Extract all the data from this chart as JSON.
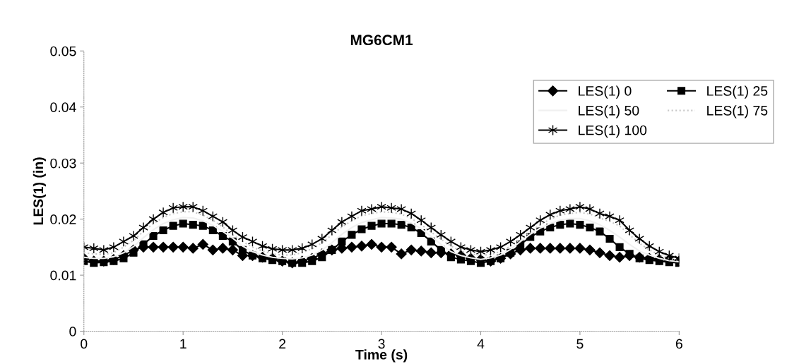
{
  "chart_data": {
    "type": "line",
    "title": "MG6CM1",
    "xlabel": "Time (s)",
    "ylabel": "LES(1) (in)",
    "x": [
      0,
      0.1,
      0.2,
      0.3,
      0.4,
      0.5,
      0.6,
      0.7,
      0.8,
      0.9,
      1,
      1.1,
      1.2,
      1.3,
      1.4,
      1.5,
      1.6,
      1.7,
      1.8,
      1.9,
      2,
      2.1,
      2.2,
      2.3,
      2.4,
      2.5,
      2.6,
      2.7,
      2.8,
      2.9,
      3,
      3.1,
      3.2,
      3.3,
      3.4,
      3.5,
      3.6,
      3.7,
      3.8,
      3.9,
      4,
      4.1,
      4.2,
      4.3,
      4.4,
      4.5,
      4.6,
      4.7,
      4.8,
      4.9,
      5,
      5.1,
      5.2,
      5.3,
      5.4,
      5.5,
      5.6,
      5.7,
      5.8,
      5.9,
      6
    ],
    "series": [
      {
        "name": "LES(1) 0",
        "color": "#000000",
        "marker": "diamond",
        "line_style": "solid",
        "values": [
          0.013,
          0.0125,
          0.0125,
          0.0128,
          0.0135,
          0.0145,
          0.015,
          0.015,
          0.015,
          0.015,
          0.015,
          0.0148,
          0.0155,
          0.0145,
          0.0148,
          0.0145,
          0.0135,
          0.0135,
          0.0132,
          0.013,
          0.0125,
          0.0122,
          0.0125,
          0.013,
          0.0138,
          0.0145,
          0.0148,
          0.015,
          0.0152,
          0.0155,
          0.015,
          0.015,
          0.0138,
          0.0145,
          0.0143,
          0.014,
          0.014,
          0.0138,
          0.0135,
          0.013,
          0.0128,
          0.0125,
          0.013,
          0.0138,
          0.0145,
          0.0148,
          0.0148,
          0.0148,
          0.0148,
          0.0148,
          0.0148,
          0.0145,
          0.014,
          0.0135,
          0.0132,
          0.0135,
          0.0132,
          0.013,
          0.0128,
          0.0127,
          0.0125
        ]
      },
      {
        "name": "LES(1) 25",
        "color": "#000000",
        "marker": "square",
        "line_style": "solid",
        "values": [
          0.0125,
          0.0122,
          0.0123,
          0.0125,
          0.013,
          0.014,
          0.0155,
          0.017,
          0.018,
          0.0188,
          0.0192,
          0.019,
          0.0188,
          0.018,
          0.017,
          0.016,
          0.0145,
          0.0135,
          0.013,
          0.0127,
          0.0125,
          0.0122,
          0.0122,
          0.0125,
          0.0132,
          0.0145,
          0.016,
          0.0172,
          0.0182,
          0.0188,
          0.0192,
          0.0192,
          0.019,
          0.0185,
          0.0175,
          0.016,
          0.0145,
          0.0132,
          0.0128,
          0.0125,
          0.0122,
          0.0125,
          0.013,
          0.014,
          0.0155,
          0.0168,
          0.0178,
          0.0185,
          0.019,
          0.0192,
          0.019,
          0.0185,
          0.0178,
          0.0165,
          0.015,
          0.0138,
          0.013,
          0.0127,
          0.0125,
          0.0123,
          0.0122
        ]
      },
      {
        "name": "LES(1) 50",
        "color": "#f0f0f0",
        "marker": "none",
        "line_style": "solid",
        "values": [
          0.0132,
          0.013,
          0.013,
          0.0133,
          0.014,
          0.0151,
          0.0167,
          0.0181,
          0.0192,
          0.0199,
          0.0203,
          0.0202,
          0.0197,
          0.0189,
          0.0178,
          0.0166,
          0.0152,
          0.0142,
          0.0136,
          0.0132,
          0.013,
          0.0129,
          0.0131,
          0.0136,
          0.0145,
          0.0158,
          0.0173,
          0.0185,
          0.0194,
          0.0199,
          0.0203,
          0.0202,
          0.02,
          0.0193,
          0.0183,
          0.0169,
          0.0155,
          0.0142,
          0.0135,
          0.0131,
          0.0128,
          0.0131,
          0.0136,
          0.0146,
          0.016,
          0.0173,
          0.0184,
          0.0192,
          0.0198,
          0.0201,
          0.0201,
          0.0197,
          0.019,
          0.018,
          0.0168,
          0.0155,
          0.0143,
          0.0136,
          0.013,
          0.0126,
          0.0124
        ]
      },
      {
        "name": "LES(1) 75",
        "color": "#c8c8c8",
        "marker": "none",
        "line_style": "dotted",
        "values": [
          0.014,
          0.0138,
          0.0137,
          0.014,
          0.015,
          0.0162,
          0.0178,
          0.0192,
          0.0203,
          0.021,
          0.0213,
          0.0213,
          0.0207,
          0.0198,
          0.0186,
          0.0172,
          0.016,
          0.015,
          0.0143,
          0.0138,
          0.0136,
          0.0136,
          0.014,
          0.0147,
          0.0158,
          0.0172,
          0.0186,
          0.0197,
          0.0206,
          0.021,
          0.0213,
          0.0212,
          0.0209,
          0.0201,
          0.019,
          0.0177,
          0.0164,
          0.0152,
          0.0143,
          0.0138,
          0.0135,
          0.0137,
          0.0142,
          0.0152,
          0.0164,
          0.0177,
          0.019,
          0.02,
          0.0207,
          0.021,
          0.0212,
          0.0209,
          0.0202,
          0.0196,
          0.0188,
          0.0172,
          0.0157,
          0.0145,
          0.0136,
          0.013,
          0.0126
        ]
      },
      {
        "name": "LES(1) 100",
        "color": "#000000",
        "marker": "cross",
        "line_style": "solid",
        "values": [
          0.015,
          0.0148,
          0.0145,
          0.015,
          0.016,
          0.017,
          0.0185,
          0.02,
          0.0212,
          0.022,
          0.0222,
          0.0222,
          0.0215,
          0.0205,
          0.0195,
          0.018,
          0.0168,
          0.016,
          0.0152,
          0.0147,
          0.0145,
          0.0145,
          0.0148,
          0.0155,
          0.0165,
          0.018,
          0.0195,
          0.0205,
          0.0215,
          0.0218,
          0.0222,
          0.022,
          0.0218,
          0.021,
          0.0198,
          0.0185,
          0.0172,
          0.016,
          0.015,
          0.0145,
          0.0142,
          0.0145,
          0.015,
          0.016,
          0.0172,
          0.0185,
          0.0198,
          0.0208,
          0.0215,
          0.0218,
          0.0222,
          0.0218,
          0.021,
          0.0205,
          0.0198,
          0.018,
          0.0165,
          0.0152,
          0.0142,
          0.0135,
          0.013
        ]
      }
    ],
    "xlim": [
      0,
      6
    ],
    "xticks": [
      0,
      1,
      2,
      3,
      4,
      5,
      6
    ],
    "ylim": [
      0,
      0.05
    ],
    "yticks": [
      0,
      0.01,
      0.02,
      0.03,
      0.04,
      0.05
    ],
    "grid": false,
    "legend": "top right"
  }
}
